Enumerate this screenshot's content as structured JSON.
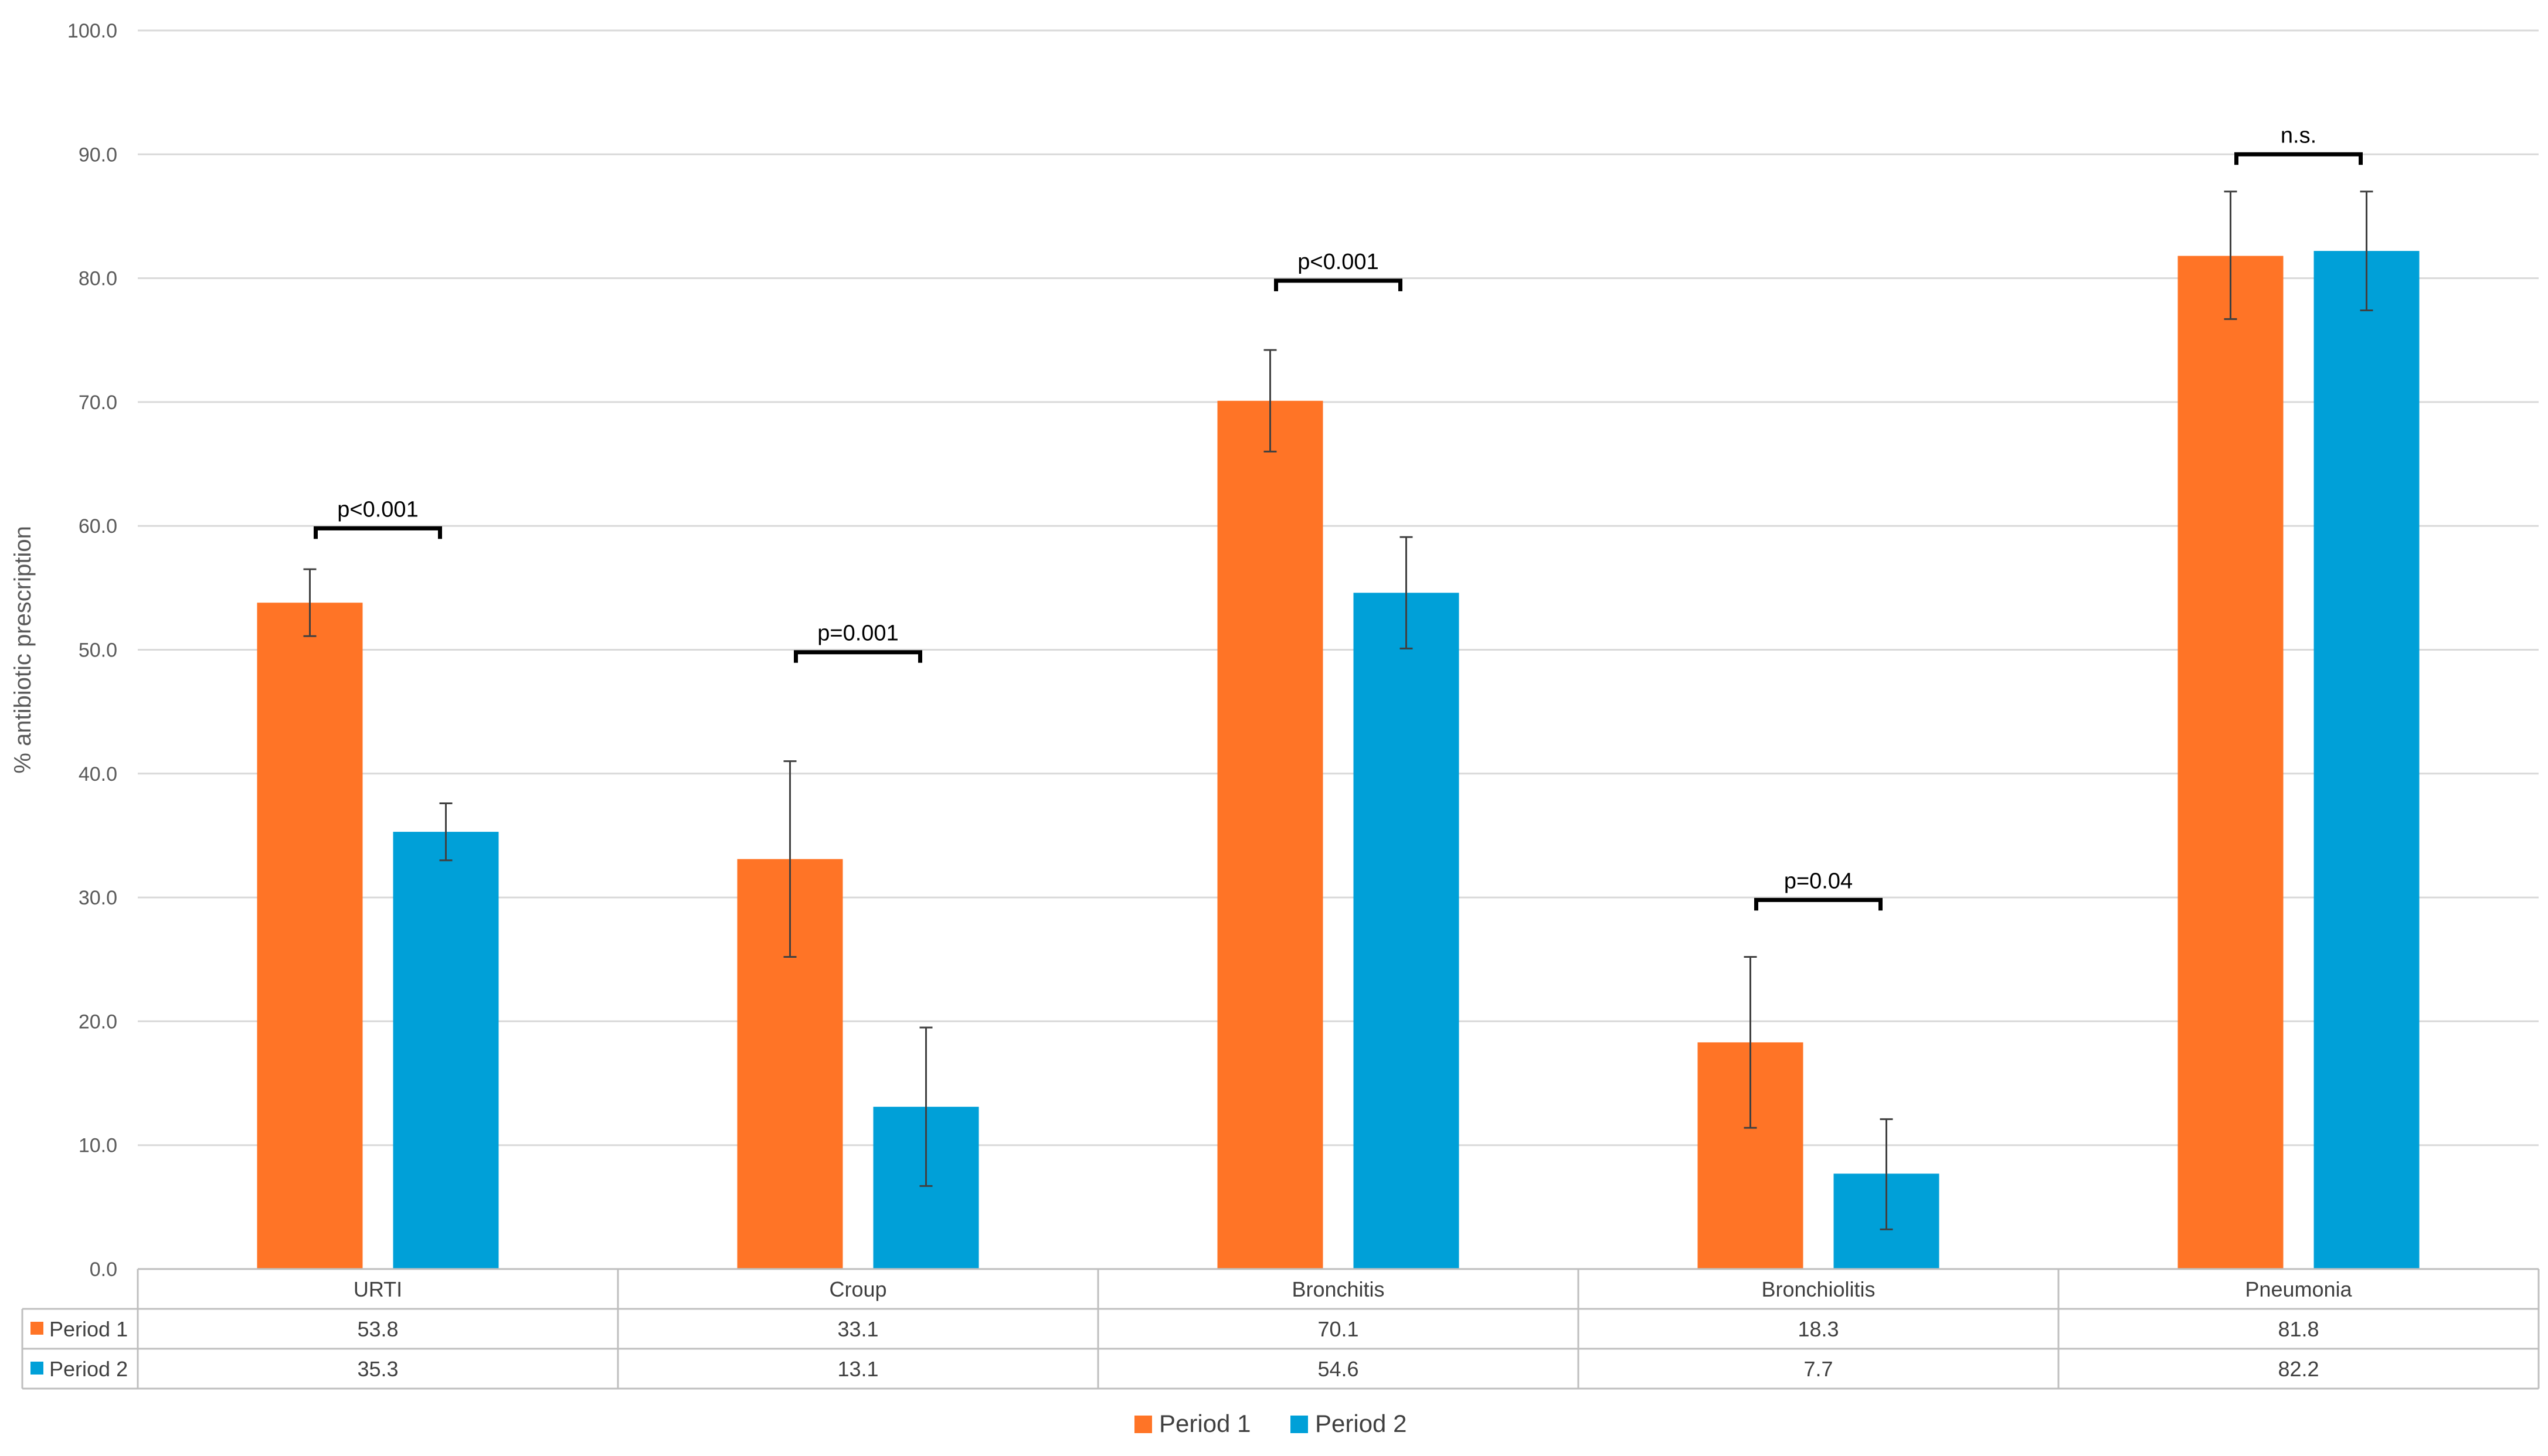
{
  "chart_data": {
    "type": "bar",
    "title": "",
    "xlabel": "",
    "ylabel": "% antibiotic prescription",
    "ylim": [
      0,
      100
    ],
    "yticks": [
      "0.0",
      "10.0",
      "20.0",
      "30.0",
      "40.0",
      "50.0",
      "60.0",
      "70.0",
      "80.0",
      "90.0",
      "100.0"
    ],
    "grid": true,
    "legend_position": "bottom",
    "categories": [
      "URTI",
      "Croup",
      "Bronchitis",
      "Bronchiolitis",
      "Pneumonia"
    ],
    "series": [
      {
        "name": "Period 1",
        "color": "#FF7426",
        "values": [
          53.8,
          33.1,
          70.1,
          18.3,
          81.8
        ],
        "labels": [
          "53.8",
          "33.1",
          "70.1",
          "18.3",
          "81.8"
        ],
        "error_low": [
          51.1,
          25.2,
          66.0,
          11.4,
          76.7
        ],
        "error_high": [
          56.5,
          41.0,
          74.2,
          25.2,
          87.0
        ]
      },
      {
        "name": "Period 2",
        "color": "#00A0D8",
        "values": [
          35.3,
          13.1,
          54.6,
          7.7,
          82.2
        ],
        "labels": [
          "35.3",
          "13.1",
          "54.6",
          "7.7",
          "82.2"
        ],
        "error_low": [
          33.0,
          6.7,
          50.1,
          3.2,
          77.4
        ],
        "error_high": [
          37.6,
          19.5,
          59.1,
          12.1,
          87.0
        ]
      }
    ],
    "annotations": [
      {
        "category_index": 0,
        "text": "p<0.001",
        "level": 59.8
      },
      {
        "category_index": 1,
        "text": "p=0.001",
        "level": 49.8
      },
      {
        "category_index": 2,
        "text": "p<0.001",
        "level": 79.8
      },
      {
        "category_index": 3,
        "text": "p=0.04",
        "level": 29.8
      },
      {
        "category_index": 4,
        "text": "n.s.",
        "level": 90.0
      }
    ]
  }
}
